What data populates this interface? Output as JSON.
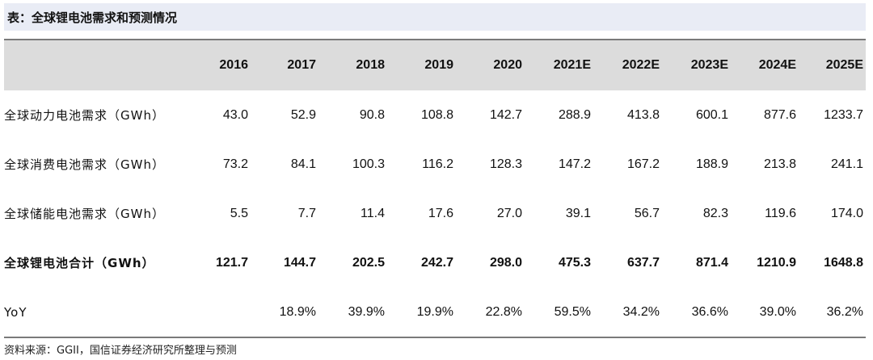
{
  "title": "表：全球锂电池需求和预测情况",
  "table": {
    "years": [
      "2016",
      "2017",
      "2018",
      "2019",
      "2020",
      "2021E",
      "2022E",
      "2023E",
      "2024E",
      "2025E"
    ],
    "rows": [
      {
        "label": "全球动力电池需求（GWh）",
        "values": [
          "43.0",
          "52.9",
          "90.8",
          "108.8",
          "142.7",
          "288.9",
          "413.8",
          "600.1",
          "877.6",
          "1233.7"
        ]
      },
      {
        "label": "全球消费电池需求（GWh）",
        "values": [
          "73.2",
          "84.1",
          "100.3",
          "116.2",
          "128.3",
          "147.2",
          "167.2",
          "188.9",
          "213.8",
          "241.1"
        ]
      },
      {
        "label": "全球储能电池需求（GWh）",
        "values": [
          "5.5",
          "7.7",
          "11.4",
          "17.6",
          "27.0",
          "39.1",
          "56.7",
          "82.3",
          "119.6",
          "174.0"
        ]
      },
      {
        "label": "全球锂电池合计（GWh）",
        "values": [
          "121.7",
          "144.7",
          "202.5",
          "242.7",
          "298.0",
          "475.3",
          "637.7",
          "871.4",
          "1210.9",
          "1648.8"
        ]
      },
      {
        "label": "YoY",
        "values": [
          "",
          "18.9%",
          "39.9%",
          "19.9%",
          "22.8%",
          "59.5%",
          "34.2%",
          "36.6%",
          "39.0%",
          "36.2%"
        ]
      }
    ]
  },
  "source": "资料来源：GGII，国信证券经济研究所整理与预测"
}
